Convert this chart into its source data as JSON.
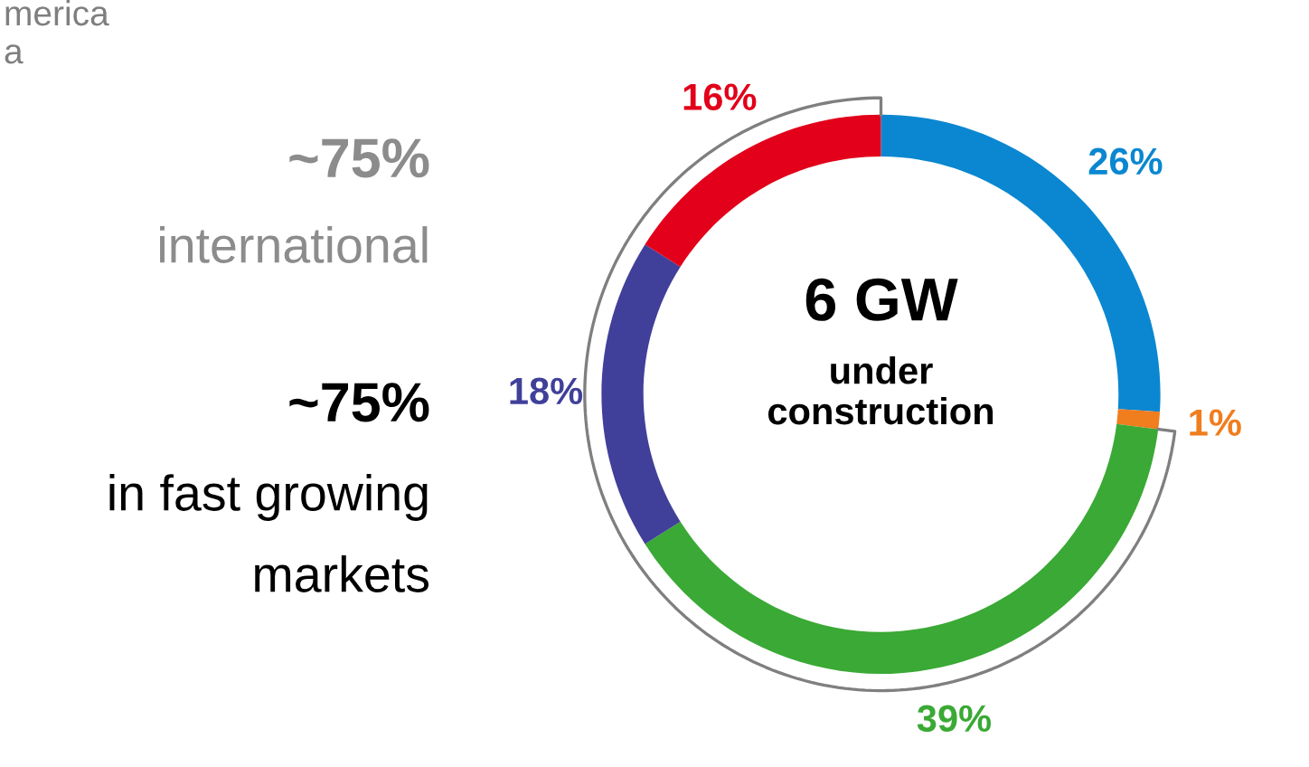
{
  "chart_data": {
    "type": "donut",
    "title": "6 GW",
    "subtitle": "under\nconstruction",
    "categories": [
      null,
      null,
      null,
      null,
      null
    ],
    "values": [
      26,
      1,
      39,
      18,
      16
    ],
    "colors": [
      "#0a87d0",
      "#f07d1e",
      "#3aa935",
      "#40409a",
      "#e2001a"
    ],
    "value_labels": [
      "26%",
      "1%",
      "39%",
      "18%",
      "16%"
    ],
    "annotations": [
      "merica",
      "a",
      "~75%",
      "international",
      "~75%",
      "in fast growing",
      "markets"
    ]
  }
}
